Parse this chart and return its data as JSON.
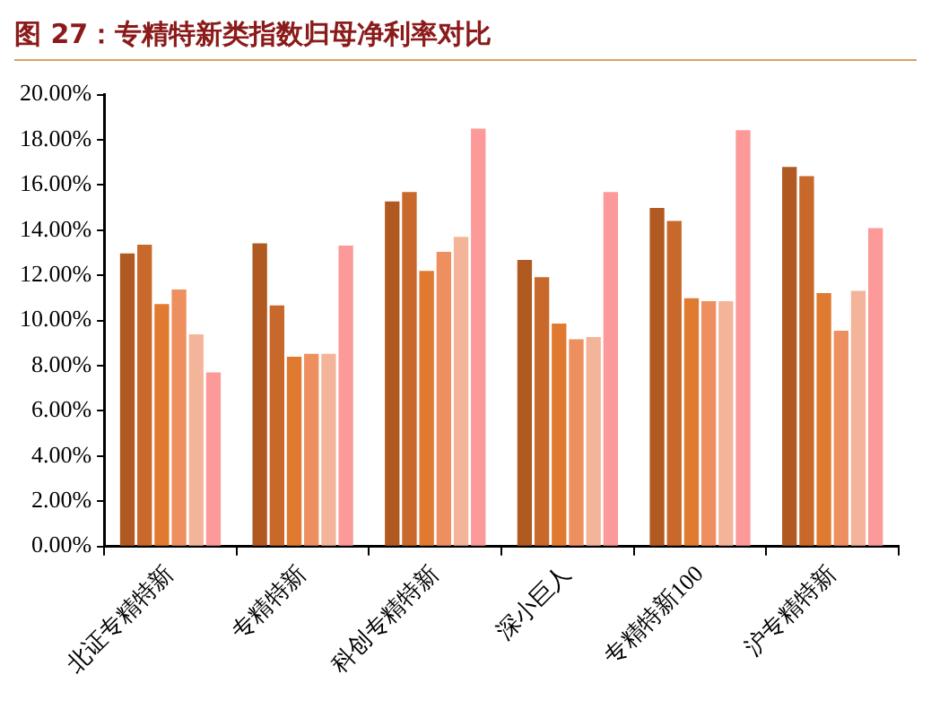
{
  "chart_data": {
    "type": "bar",
    "title": "图 27：专精特新类指数归母净利率对比",
    "categories": [
      "北证专精特新",
      "专精特新",
      "科创专精特新",
      "深小巨人",
      "专精特新100",
      "沪专精特新"
    ],
    "series": [
      {
        "color": "#b05a22",
        "values": [
          12.97,
          13.42,
          15.27,
          12.68,
          14.98,
          16.8
        ]
      },
      {
        "color": "#c8682a",
        "values": [
          13.36,
          10.67,
          15.69,
          11.92,
          14.41,
          16.39
        ]
      },
      {
        "color": "#e07a30",
        "values": [
          10.73,
          8.4,
          12.2,
          9.87,
          10.99,
          11.21
        ]
      },
      {
        "color": "#ee8f60",
        "values": [
          11.37,
          8.53,
          13.04,
          9.17,
          10.86,
          9.55
        ]
      },
      {
        "color": "#f4b49a",
        "values": [
          9.39,
          8.53,
          13.7,
          9.27,
          10.86,
          11.31
        ]
      },
      {
        "color": "#fc9a9a",
        "values": [
          7.7,
          13.32,
          18.5,
          15.69,
          18.43,
          14.09
        ]
      }
    ],
    "ylim": [
      0,
      20
    ],
    "yticks": [
      {
        "value": 0,
        "label": "0.00%"
      },
      {
        "value": 2,
        "label": "2.00%"
      },
      {
        "value": 4,
        "label": "4.00%"
      },
      {
        "value": 6,
        "label": "6.00%"
      },
      {
        "value": 8,
        "label": "8.00%"
      },
      {
        "value": 10,
        "label": "10.00%"
      },
      {
        "value": 12,
        "label": "12.00%"
      },
      {
        "value": 14,
        "label": "14.00%"
      },
      {
        "value": 16,
        "label": "16.00%"
      },
      {
        "value": 18,
        "label": "18.00%"
      },
      {
        "value": 20,
        "label": "20.00%"
      }
    ],
    "grid": false,
    "legend": false
  }
}
